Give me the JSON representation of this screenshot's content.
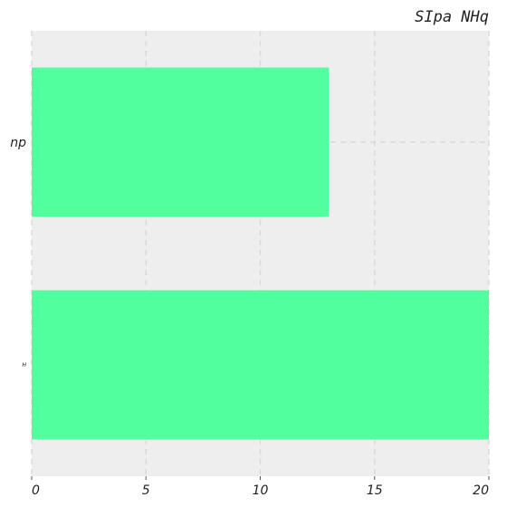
{
  "chart_data": {
    "type": "bar",
    "orientation": "horizontal",
    "title": "SIpa NHq",
    "title_position": "top-right",
    "categories": [
      "np",
      "H"
    ],
    "values": [
      13,
      20
    ],
    "xlabel": "",
    "ylabel": "",
    "xlim": [
      0,
      20
    ],
    "x_ticks": [
      0,
      5,
      10,
      15,
      20
    ],
    "grid": true,
    "bar_color": "#52ff9f",
    "plot_background": "#eeeeee"
  }
}
